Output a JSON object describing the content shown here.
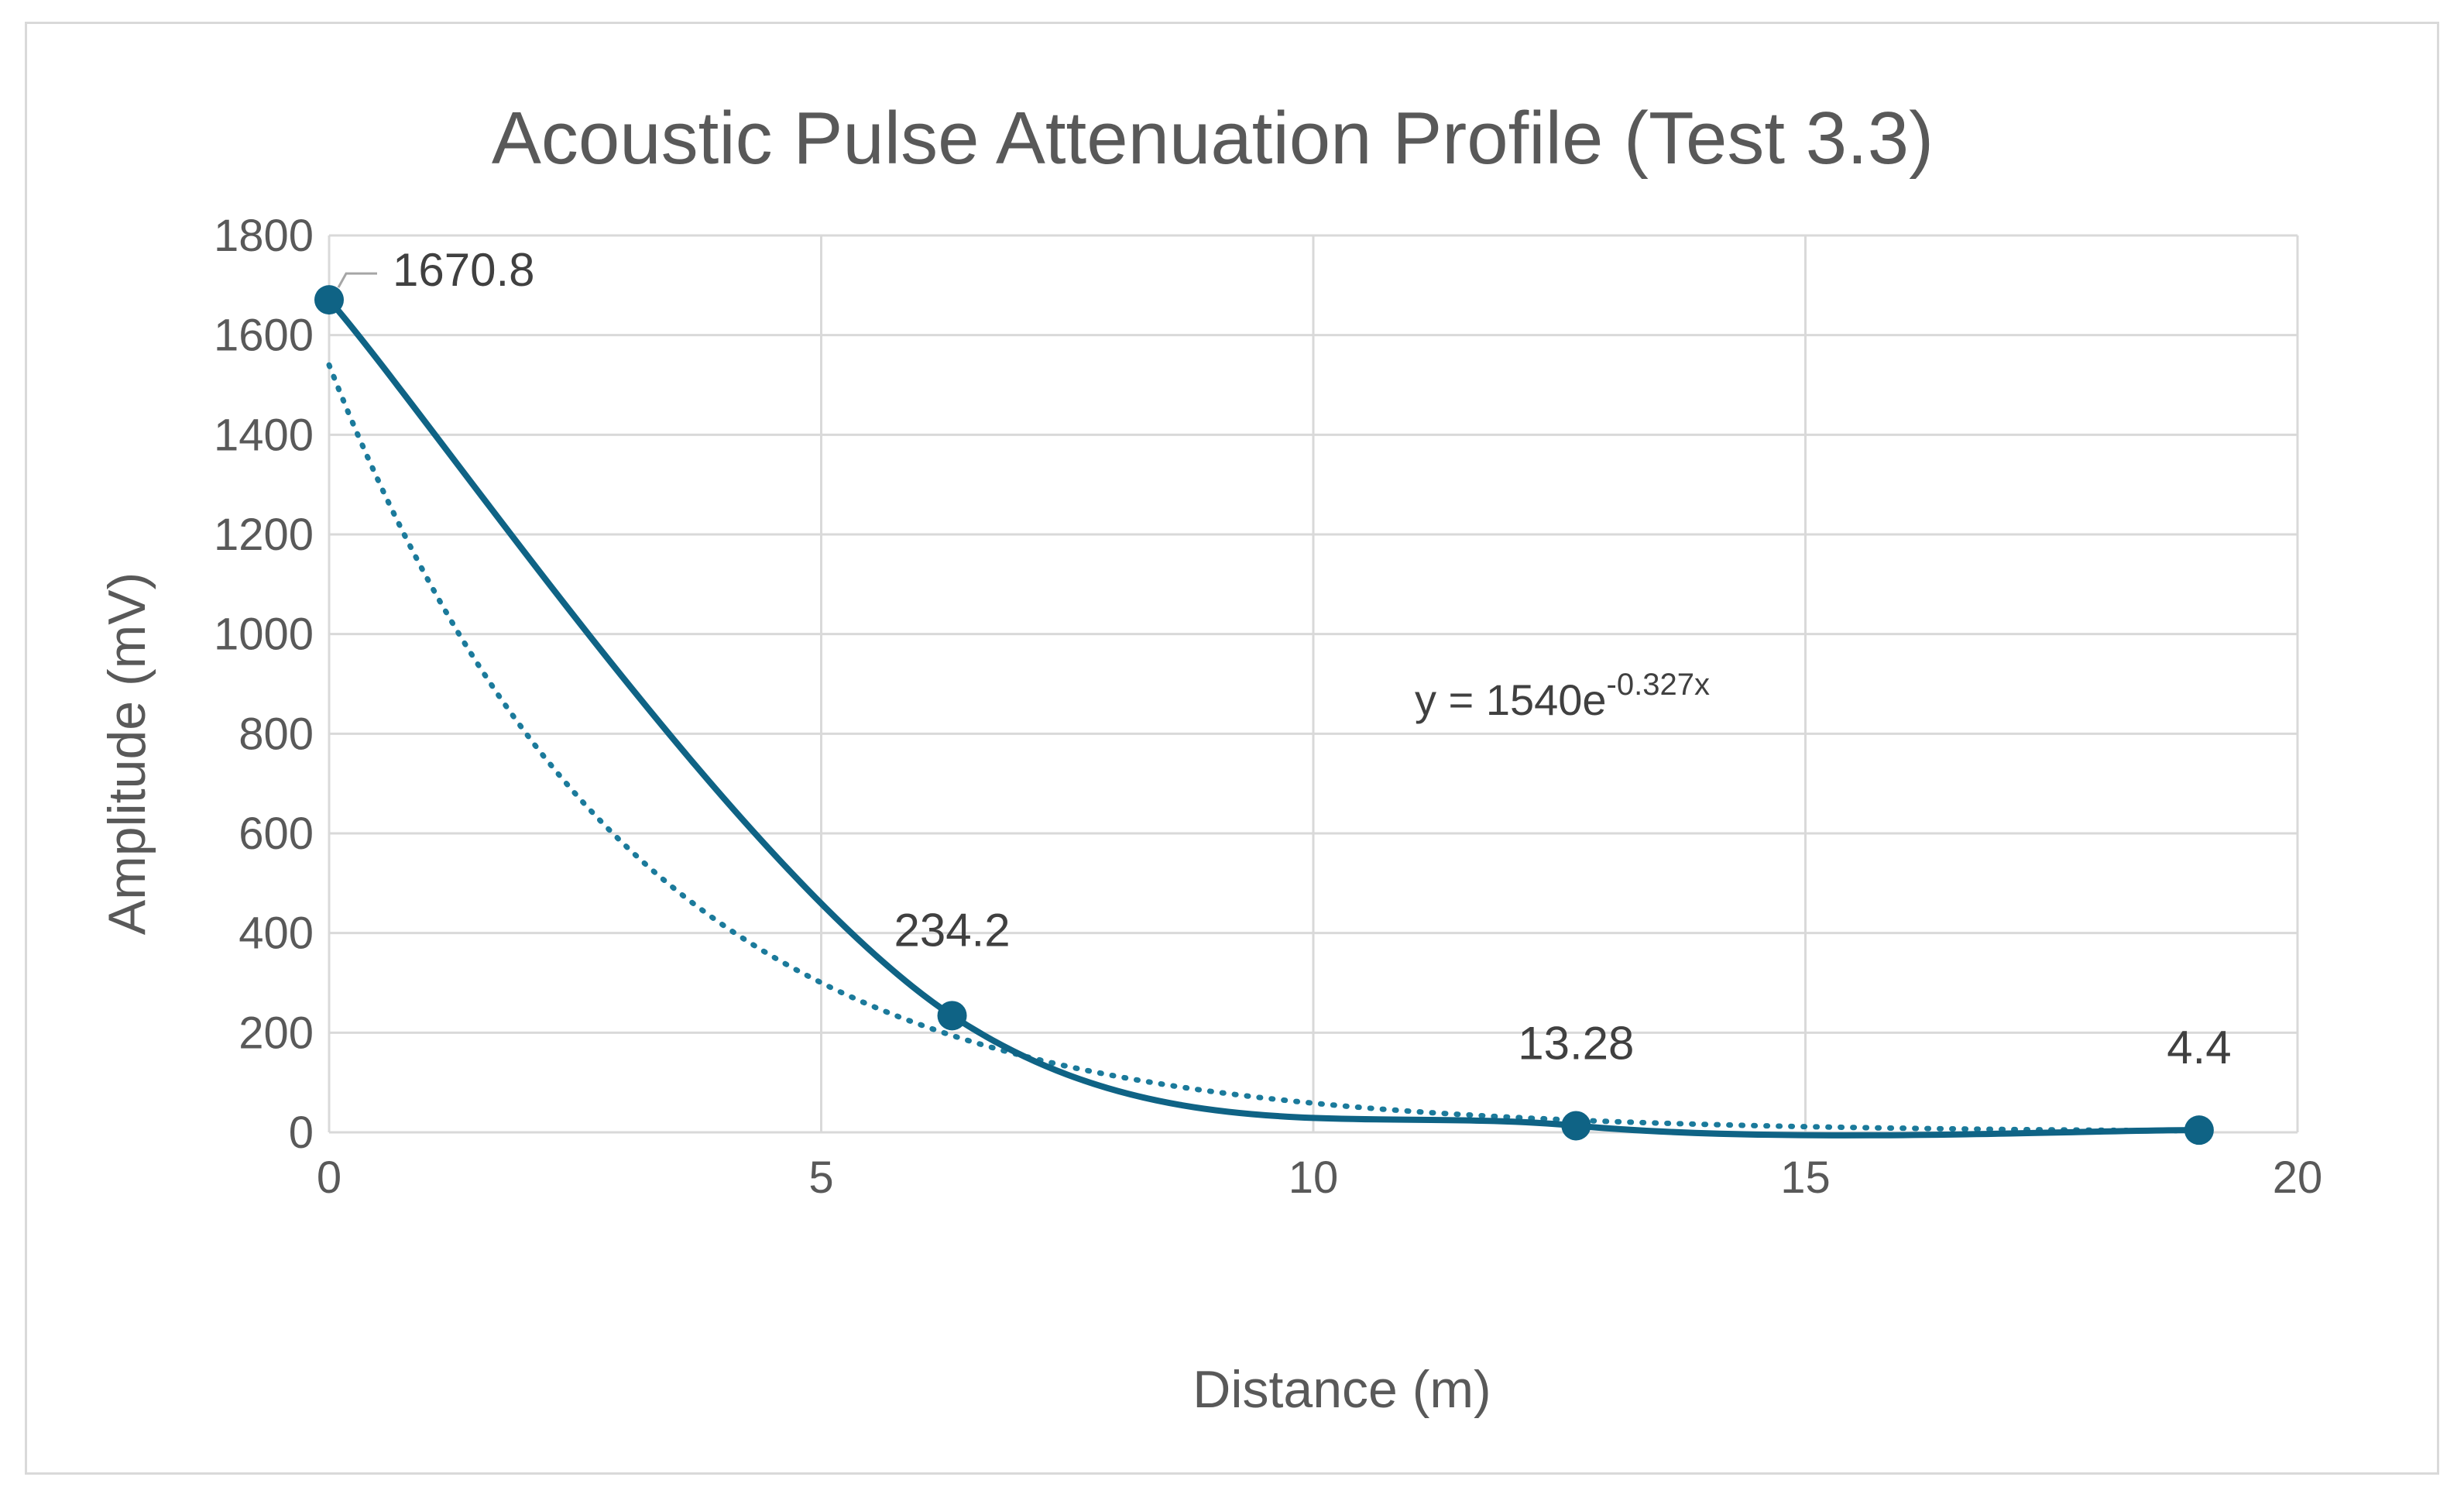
{
  "chart_data": {
    "type": "scatter",
    "title": "Acoustic Pulse Attenuation Profile (Test 3.3)",
    "xlabel": "Distance (m)",
    "ylabel": "Amplitude (mV)",
    "xlim": [
      0,
      20
    ],
    "ylim": [
      0,
      1800
    ],
    "x_ticks": [
      0,
      5,
      10,
      15,
      20
    ],
    "x_tick_labels": [
      "0",
      "5",
      "10",
      "15",
      "20"
    ],
    "y_ticks": [
      0,
      200,
      400,
      600,
      800,
      1000,
      1200,
      1400,
      1600,
      1800
    ],
    "y_tick_labels": [
      "0",
      "200",
      "400",
      "600",
      "800",
      "1000",
      "1200",
      "1400",
      "1600",
      "1800"
    ],
    "grid": true,
    "smoothed_line": true,
    "series": [
      {
        "name": "Amplitude",
        "color": "#0f6385",
        "points": [
          {
            "x": 0,
            "y": 1670.8,
            "label": "1670.8"
          },
          {
            "x": 6.33,
            "y": 234.2,
            "label": "234.2"
          },
          {
            "x": 12.67,
            "y": 13.28,
            "label": "13.28"
          },
          {
            "x": 19,
            "y": 4.4,
            "label": "4.4"
          }
        ]
      }
    ],
    "trendline": {
      "type": "exponential",
      "color": "#1b7a9b",
      "a": 1540,
      "b": -0.327,
      "equation_base": "y = 1540e",
      "equation_exponent": "-0.327x"
    }
  }
}
